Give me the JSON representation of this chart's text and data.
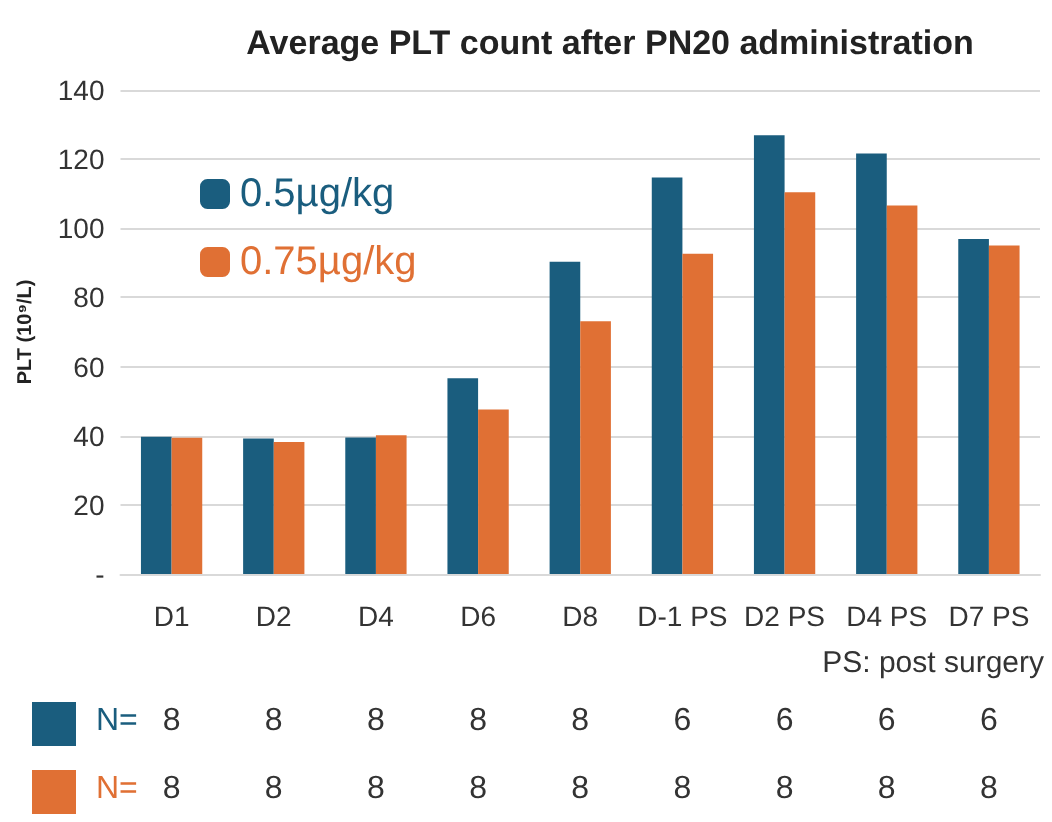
{
  "chart_data": {
    "type": "bar",
    "title": "Average PLT count after PN20 administration",
    "ylabel": "PLT (10⁹/L)",
    "categories": [
      "D1",
      "D2",
      "D4",
      "D6",
      "D8",
      "D-1 PS",
      "D2 PS",
      "D4 PS",
      "D7 PS"
    ],
    "series": [
      {
        "name": "0.5µg/kg",
        "color": "#1a5d7e",
        "values": [
          39.7,
          39.2,
          39.5,
          56.6,
          90.3,
          114.7,
          126.9,
          121.6,
          96.9
        ]
      },
      {
        "name": "0.75µg/kg",
        "color": "#e07034",
        "values": [
          39.4,
          38.2,
          40.1,
          47.6,
          73.1,
          92.6,
          110.4,
          106.6,
          95.0
        ]
      }
    ],
    "ylim": [
      0,
      140
    ],
    "yticks": [
      {
        "value": 0,
        "label": "-"
      },
      20,
      40,
      60,
      80,
      100,
      120,
      140
    ],
    "grid": "y",
    "legend": "top left",
    "annotations": [
      "PS: post surgery",
      "N=",
      "N=",
      "8",
      "8",
      "8",
      "8",
      "8",
      "6",
      "6",
      "6",
      "6",
      "8",
      "8",
      "8",
      "8",
      "8",
      "8",
      "8",
      "8",
      "8"
    ]
  }
}
